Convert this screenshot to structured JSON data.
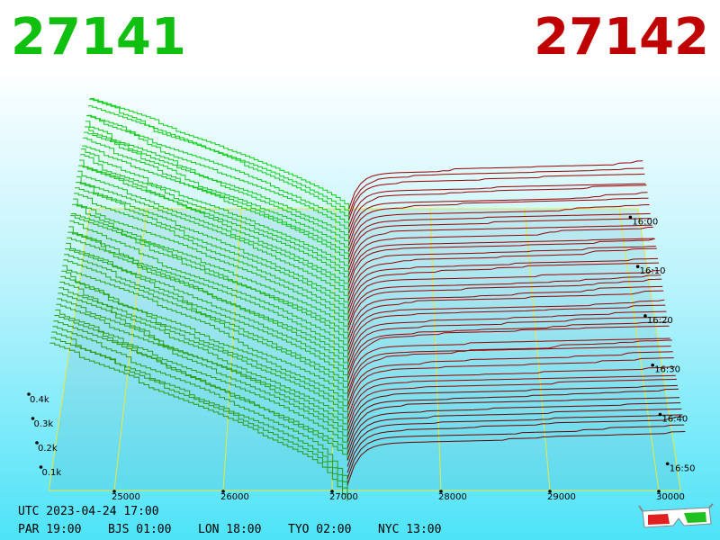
{
  "header": {
    "bid": "27141",
    "ask": "27142"
  },
  "price_axis": [
    "25000",
    "26000",
    "27000",
    "28000",
    "29000",
    "30000"
  ],
  "time_axis": [
    "16:00",
    "16:10",
    "16:20",
    "16:30",
    "16:40",
    "16:50"
  ],
  "depth_axis": [
    "0.4k",
    "0.3k",
    "0.2k",
    "0.1k"
  ],
  "footer": {
    "utc": "UTC 2023-04-24 17:00",
    "zones": [
      "PAR 19:00",
      "BJS 01:00",
      "LON 18:00",
      "TYO 02:00",
      "NYC 13:00"
    ]
  }
}
